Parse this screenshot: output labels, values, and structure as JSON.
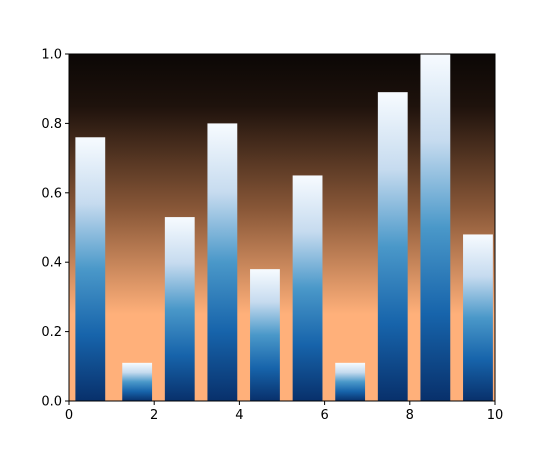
{
  "chart_data": {
    "type": "bar",
    "x": [
      0.5,
      1.6,
      2.6,
      3.6,
      4.6,
      5.6,
      6.6,
      7.6,
      8.6,
      9.6
    ],
    "values": [
      0.76,
      0.11,
      0.53,
      0.8,
      0.38,
      0.65,
      0.11,
      0.89,
      1.0,
      0.48
    ],
    "bar_width": 0.7,
    "xlim": [
      0,
      10
    ],
    "ylim": [
      0,
      1
    ],
    "xticks": [
      0,
      2,
      4,
      6,
      8,
      10
    ],
    "yticks": [
      0.0,
      0.2,
      0.4,
      0.6,
      0.8,
      1.0
    ],
    "xtick_labels": [
      "0",
      "2",
      "4",
      "6",
      "8",
      "10"
    ],
    "ytick_labels": [
      "0.0",
      "0.2",
      "0.4",
      "0.6",
      "0.8",
      "1.0"
    ],
    "title": "",
    "xlabel": "",
    "ylabel": "",
    "grid": false,
    "background_colormap": "copper",
    "bar_colormap": "Blues",
    "colors": {
      "bg_top": "#0b0705",
      "bg_bottom": "#ffb07a",
      "bar_dark": "#08306b",
      "bar_mid": "#4a98c9",
      "bar_light": "#f7fbff"
    }
  }
}
